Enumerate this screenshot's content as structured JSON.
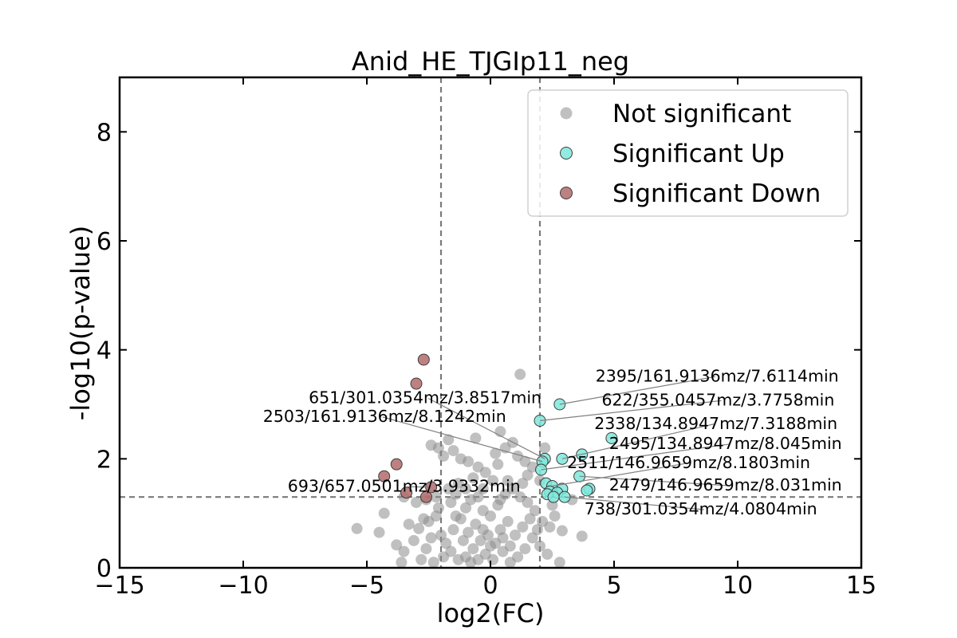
{
  "chart_data": {
    "type": "scatter",
    "title": "Anid_HE_TJGIp11_neg",
    "xlabel": "log2(FC)",
    "ylabel": "-log10(p-value)",
    "xlim": [
      -15,
      15
    ],
    "ylim": [
      0,
      9
    ],
    "xticks": [
      -15,
      -10,
      -5,
      0,
      5,
      10,
      15
    ],
    "xtick_labels": [
      "−15",
      "−10",
      "−5",
      "0",
      "5",
      "10",
      "15"
    ],
    "yticks": [
      0,
      2,
      4,
      6,
      8
    ],
    "ytick_labels": [
      "0",
      "2",
      "4",
      "6",
      "8"
    ],
    "grid": false,
    "legend_position": "top-right",
    "thresholds": {
      "fc_lines": [
        -2,
        2
      ],
      "p_line": 1.3
    },
    "series": [
      {
        "name": "Not significant",
        "color": "#8c8c8c",
        "points": [
          [
            1.2,
            3.55
          ],
          [
            -2.4,
            2.25
          ],
          [
            -1.7,
            2.35
          ],
          [
            -0.6,
            2.38
          ],
          [
            0.4,
            2.5
          ],
          [
            -2.1,
            2.2
          ],
          [
            -1.9,
            2.05
          ],
          [
            -1.5,
            2.15
          ],
          [
            -1.2,
            2.0
          ],
          [
            -0.9,
            1.95
          ],
          [
            -0.5,
            1.85
          ],
          [
            0.2,
            2.1
          ],
          [
            0.6,
            2.2
          ],
          [
            0.9,
            2.3
          ],
          [
            1.1,
            2.05
          ],
          [
            1.4,
            1.95
          ],
          [
            1.7,
            1.85
          ],
          [
            2.2,
            2.2
          ],
          [
            2.0,
            1.6
          ],
          [
            1.5,
            1.7
          ],
          [
            0.3,
            1.9
          ],
          [
            -0.2,
            1.75
          ],
          [
            -0.7,
            1.65
          ],
          [
            -1.3,
            1.55
          ],
          [
            -1.7,
            1.45
          ],
          [
            -2.2,
            1.3
          ],
          [
            -2.6,
            1.25
          ],
          [
            -3.0,
            1.2
          ],
          [
            -3.5,
            1.3
          ],
          [
            -4.3,
            1.0
          ],
          [
            -4.5,
            0.65
          ],
          [
            -5.4,
            0.72
          ],
          [
            -3.8,
            0.42
          ],
          [
            -3.5,
            0.3
          ],
          [
            -3.6,
            0.1
          ],
          [
            -2.8,
            0.15
          ],
          [
            -2.5,
            0.85
          ],
          [
            -2.2,
            0.95
          ],
          [
            -2.9,
            0.72
          ],
          [
            -3.3,
            0.8
          ],
          [
            -2.0,
            0.6
          ],
          [
            -1.8,
            0.45
          ],
          [
            -1.5,
            0.7
          ],
          [
            -1.2,
            0.9
          ],
          [
            -1.0,
            1.1
          ],
          [
            -0.8,
            1.25
          ],
          [
            -0.5,
            1.3
          ],
          [
            -0.3,
            1.05
          ],
          [
            0.0,
            0.95
          ],
          [
            0.3,
            1.15
          ],
          [
            0.6,
            1.35
          ],
          [
            0.9,
            1.45
          ],
          [
            1.2,
            1.3
          ],
          [
            1.5,
            1.2
          ],
          [
            1.8,
            1.05
          ],
          [
            2.1,
            0.85
          ],
          [
            2.4,
            0.75
          ],
          [
            2.9,
            0.68
          ],
          [
            3.7,
            0.58
          ],
          [
            2.8,
            0.1
          ],
          [
            2.3,
            0.25
          ],
          [
            2.0,
            0.4
          ],
          [
            1.7,
            0.55
          ],
          [
            1.4,
            0.35
          ],
          [
            1.1,
            0.2
          ],
          [
            0.8,
            0.1
          ],
          [
            0.5,
            0.3
          ],
          [
            0.2,
            0.45
          ],
          [
            -0.1,
            0.6
          ],
          [
            -0.4,
            0.5
          ],
          [
            -0.7,
            0.35
          ],
          [
            -1.0,
            0.2
          ],
          [
            -1.3,
            0.15
          ],
          [
            -1.6,
            0.3
          ],
          [
            -1.9,
            0.2
          ],
          [
            -2.3,
            0.1
          ],
          [
            -2.6,
            0.35
          ],
          [
            -0.2,
            0.25
          ],
          [
            0.1,
            0.15
          ],
          [
            0.4,
            0.7
          ],
          [
            0.7,
            0.85
          ],
          [
            1.0,
            0.6
          ],
          [
            1.3,
            0.75
          ],
          [
            1.6,
            0.9
          ],
          [
            -0.6,
            0.8
          ],
          [
            -0.9,
            0.65
          ],
          [
            -1.1,
            0.5
          ],
          [
            -1.4,
            0.95
          ],
          [
            -0.3,
            0.7
          ],
          [
            0.0,
            0.4
          ],
          [
            0.5,
            0.55
          ],
          [
            0.8,
            0.4
          ],
          [
            -0.5,
            0.15
          ],
          [
            -0.8,
            0.1
          ],
          [
            1.9,
            0.7
          ],
          [
            2.6,
            0.95
          ],
          [
            3.3,
            1.25
          ],
          [
            2.5,
            1.15
          ],
          [
            -1.6,
            1.2
          ],
          [
            -2.4,
            0.55
          ],
          [
            -3.1,
            0.5
          ],
          [
            -2.7,
            0.9
          ],
          [
            0.1,
            1.6
          ],
          [
            -0.3,
            1.45
          ],
          [
            0.7,
            1.6
          ],
          [
            1.3,
            1.55
          ],
          [
            -1.0,
            1.45
          ],
          [
            -2.1,
            1.1
          ],
          [
            -1.4,
            1.35
          ],
          [
            0.4,
            1.25
          ]
        ]
      },
      {
        "name": "Significant Up",
        "color": "#7fe8dc",
        "points": [
          [
            2.8,
            3.0
          ],
          [
            2.0,
            2.7
          ],
          [
            4.9,
            2.38
          ],
          [
            3.7,
            2.08
          ],
          [
            2.2,
            2.0
          ],
          [
            2.9,
            2.0
          ],
          [
            2.1,
            1.95
          ],
          [
            2.05,
            1.8
          ],
          [
            3.6,
            1.68
          ],
          [
            2.25,
            1.55
          ],
          [
            2.5,
            1.5
          ],
          [
            2.9,
            1.45
          ],
          [
            4.0,
            1.45
          ],
          [
            3.9,
            1.42
          ],
          [
            2.4,
            1.4
          ],
          [
            2.7,
            1.38
          ],
          [
            2.3,
            1.35
          ],
          [
            2.55,
            1.3
          ],
          [
            3.0,
            1.3
          ]
        ]
      },
      {
        "name": "Significant Down",
        "color": "#b36b6b",
        "points": [
          [
            -2.7,
            3.82
          ],
          [
            -3.0,
            3.38
          ],
          [
            -3.8,
            1.9
          ],
          [
            -4.3,
            1.68
          ],
          [
            -2.4,
            1.48
          ],
          [
            -3.4,
            1.38
          ],
          [
            -2.6,
            1.3
          ]
        ]
      }
    ],
    "annotations": [
      {
        "text": "2395/161.9136mz/7.6114min",
        "x": 2.8,
        "y": 3.0,
        "tx": 4.25,
        "ty": 3.42,
        "anchor": "start"
      },
      {
        "text": "651/301.0354mz/3.8517min",
        "x": 2.2,
        "y": 2.0,
        "tx": -7.35,
        "ty": 3.02,
        "anchor": "start"
      },
      {
        "text": "622/355.0457mz/3.7758min",
        "x": 2.0,
        "y": 2.7,
        "tx": 4.5,
        "ty": 2.98,
        "anchor": "start"
      },
      {
        "text": "2503/161.9136mz/8.1242min",
        "x": 2.1,
        "y": 1.95,
        "tx": -9.2,
        "ty": 2.68,
        "anchor": "start"
      },
      {
        "text": "2338/134.8947mz/7.3188min",
        "x": 2.9,
        "y": 2.0,
        "tx": 4.2,
        "ty": 2.55,
        "anchor": "start"
      },
      {
        "text": "2495/134.8947mz/8.045min",
        "x": 2.05,
        "y": 1.8,
        "tx": 4.8,
        "ty": 2.18,
        "anchor": "start"
      },
      {
        "text": "2511/146.9659mz/8.1803min",
        "x": 2.5,
        "y": 1.5,
        "tx": 3.1,
        "ty": 1.83,
        "anchor": "start"
      },
      {
        "text": "2479/146.9659mz/8.031min",
        "x": 3.6,
        "y": 1.68,
        "tx": 4.8,
        "ty": 1.42,
        "anchor": "start"
      },
      {
        "text": "693/657.0501mz/3.9332min",
        "x": -2.4,
        "y": 1.48,
        "tx": -8.2,
        "ty": 1.4,
        "anchor": "start"
      },
      {
        "text": "738/301.0354mz/4.0804min",
        "x": 3.0,
        "y": 1.3,
        "tx": 3.8,
        "ty": 0.98,
        "anchor": "start"
      }
    ]
  }
}
